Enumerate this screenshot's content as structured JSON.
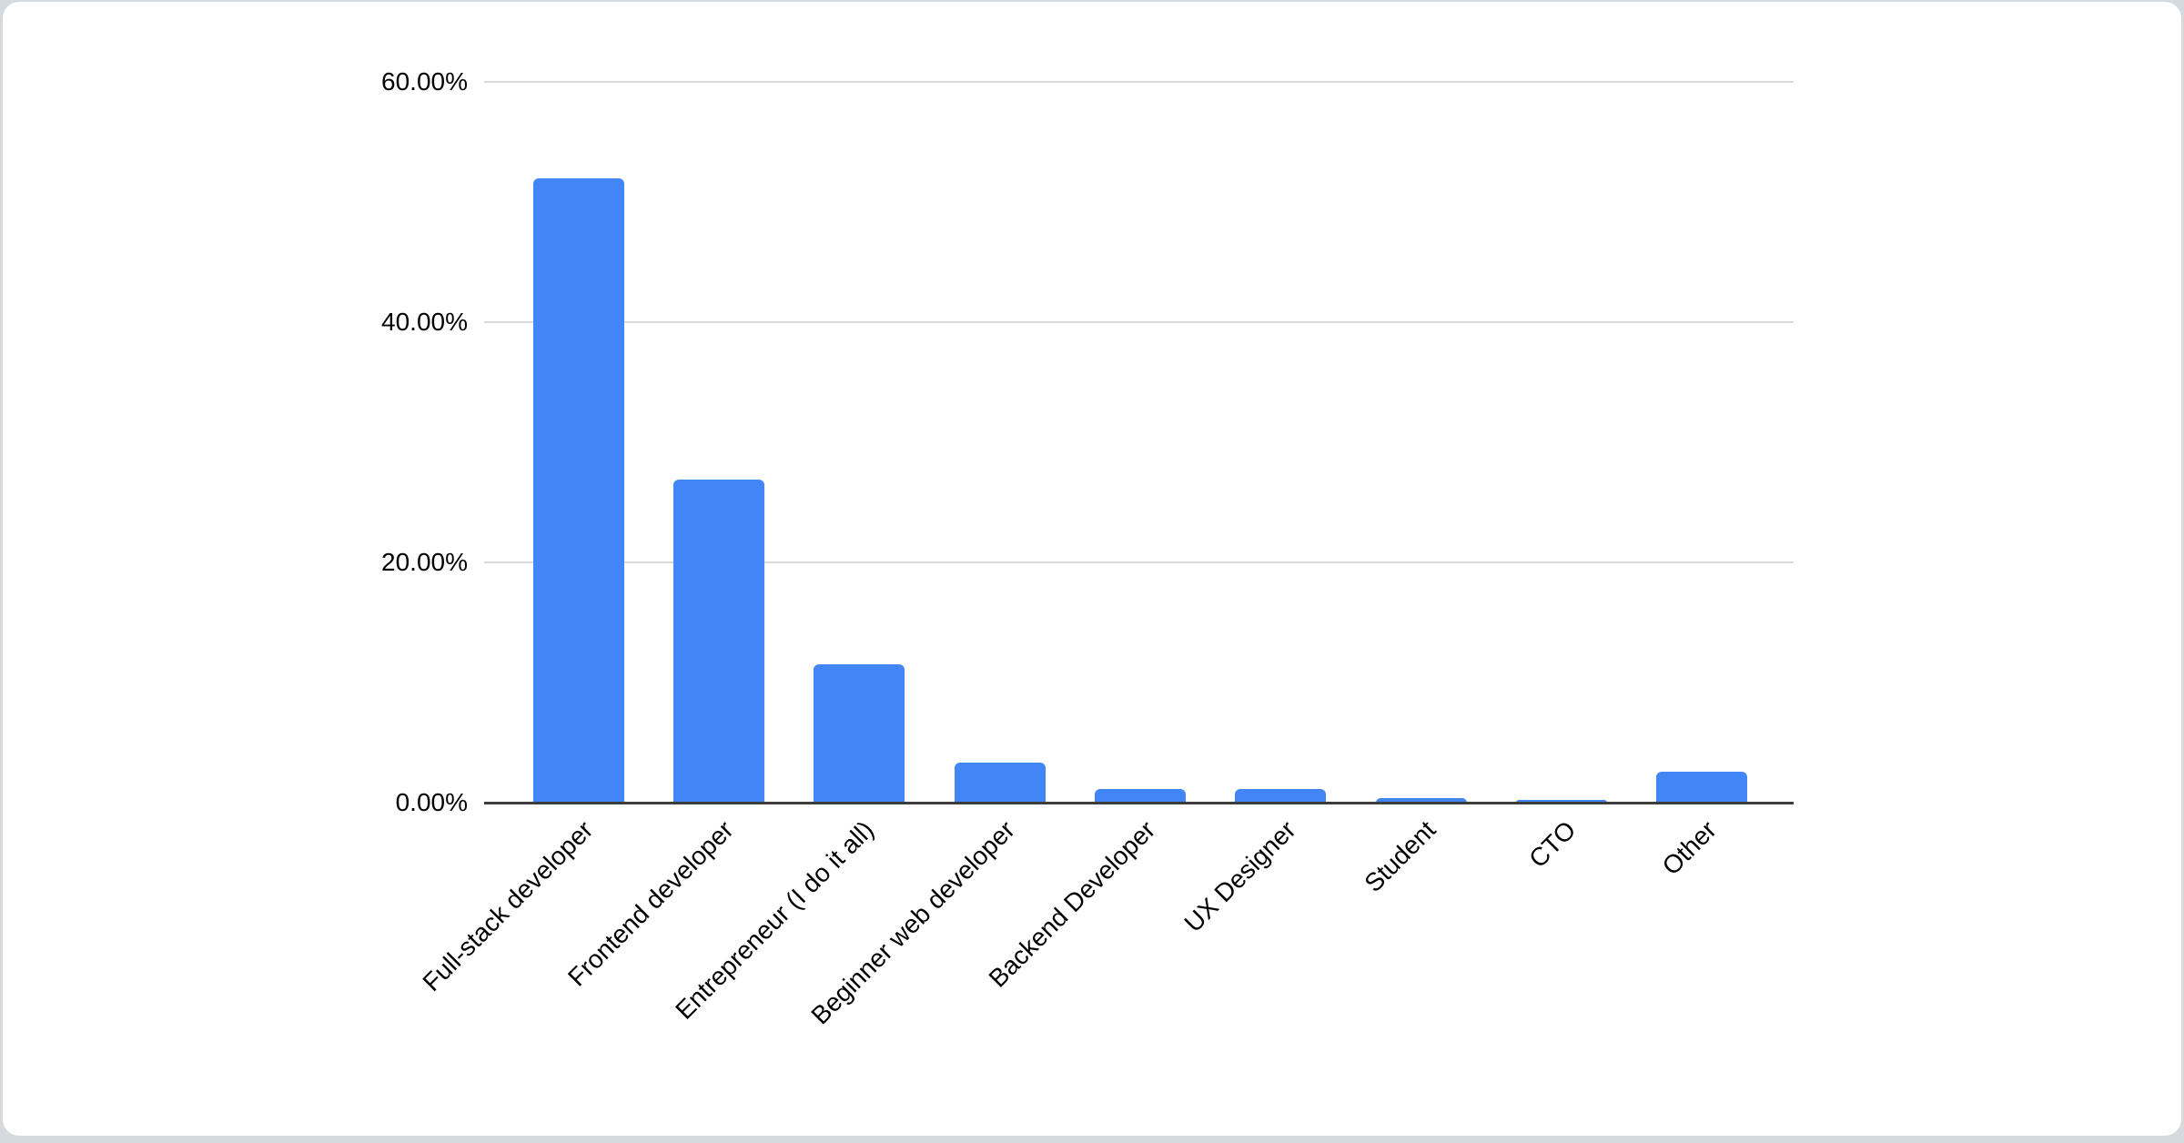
{
  "chart_data": {
    "type": "bar",
    "title": "",
    "xlabel": "",
    "ylabel": "",
    "categories": [
      "Full-stack developer",
      "Frontend developer",
      "Entrepreneur (I do it all)",
      "Beginner web developer",
      "Backend Developer",
      "UX Designer",
      "Student",
      "CTO",
      "Other"
    ],
    "values": [
      52.0,
      26.9,
      11.5,
      3.3,
      1.1,
      1.1,
      0.4,
      0.25,
      2.6
    ],
    "y_ticks": [
      {
        "value": 0,
        "label": "0.00%"
      },
      {
        "value": 20,
        "label": "20.00%"
      },
      {
        "value": 40,
        "label": "40.00%"
      },
      {
        "value": 60,
        "label": "60.00%"
      }
    ],
    "ylim": [
      0,
      60
    ],
    "grid": "horizontal",
    "legend": "none",
    "bar_color": "#4285f4",
    "gridline_color": "#d9d9d9",
    "axis_line_color": "#3c3c3c",
    "label_color": "#000000",
    "background_color": "#ffffff"
  }
}
